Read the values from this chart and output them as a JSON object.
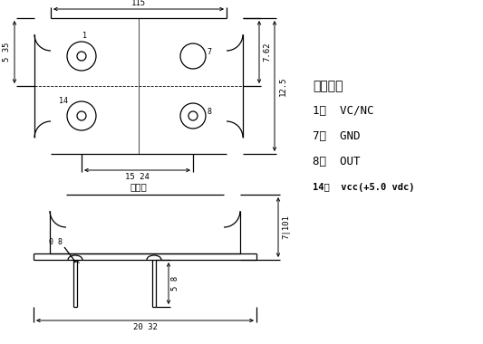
{
  "bg_color": "#ffffff",
  "line_color": "#000000",
  "title_text": "管脚功能",
  "pin_labels": [
    "1：  VC/NC",
    "7：  GND",
    "8：  OUT",
    "14：  vcc(+5.0 vdc)"
  ],
  "bottom_label": "底视图",
  "dim_115": "115",
  "dim_1524": "15 24",
  "dim_535": "5 35",
  "dim_762": "7.62",
  "dim_125": "12.5",
  "dim_08": "0 8",
  "dim_58": "5 8",
  "dim_2032": "20 32",
  "dim_71101": "7|101"
}
